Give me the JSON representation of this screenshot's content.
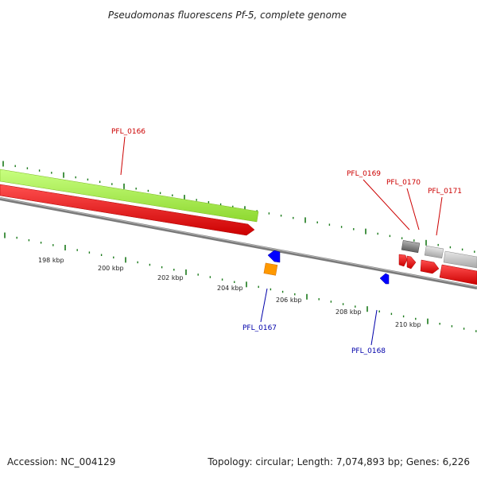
{
  "title": "Pseudomonas fluorescens Pf-5, complete genome",
  "footer": {
    "accession": "Accession: NC_004129",
    "summary": "Topology: circular; Length: 7,074,893 bp; Genes: 6,226"
  },
  "scale_labels": [
    "198 kbp",
    "200 kbp",
    "202 kbp",
    "204 kbp",
    "206 kbp",
    "208 kbp",
    "210 kbp"
  ],
  "gene_labels": [
    {
      "text": "PFL_0166",
      "color": "#cc0000"
    },
    {
      "text": "PFL_0167",
      "color": "#0000aa"
    },
    {
      "text": "PFL_0168",
      "color": "#0000aa"
    },
    {
      "text": "PFL_0169",
      "color": "#cc0000"
    },
    {
      "text": "PFL_0170",
      "color": "#cc0000"
    },
    {
      "text": "PFL_0171",
      "color": "#cc0000"
    }
  ],
  "colors": {
    "forward_cds": "#ff0000",
    "reverse_cds": "#0000ff",
    "gene_track": "#a8f040",
    "backbone": "#808080",
    "ticks": "#1a7a1a",
    "orange_feature": "#ff9900",
    "dark_gray_feature": "#666666",
    "light_gray_feature": "#c8c8c8"
  }
}
